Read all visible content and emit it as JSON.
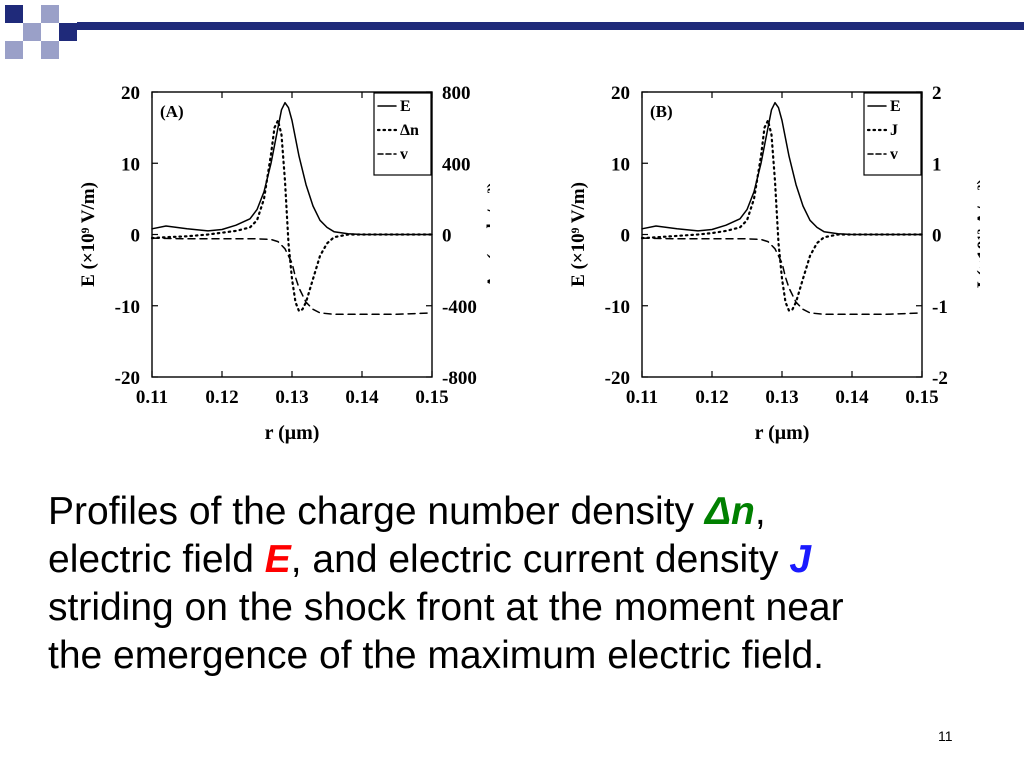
{
  "slide": {
    "caption": {
      "p1": "Profiles of the charge number density ",
      "kw_dn": "Δn",
      "p2": ",",
      "p3": "electric field ",
      "kw_e": "E",
      "p4": ", and electric current density ",
      "kw_j": "J",
      "p5": "striding on the shock front at the moment near",
      "p6": "the emergence of the maximum electric field."
    },
    "page_number": "11",
    "colors": {
      "accent": "#1f2a7a",
      "accent_light": "#9aa0c8",
      "delta_n": "#008000",
      "e_field": "#ff0000",
      "j_current": "#1a1aff"
    }
  },
  "chart_data": [
    {
      "type": "line",
      "panel_label": "(A)",
      "xlabel": "r (μm)",
      "ylabel": "E (×10⁹ V/m)",
      "ylabel_right": "Δn (mole/m³)",
      "xlim": [
        0.11,
        0.15
      ],
      "ylim": [
        -20,
        20
      ],
      "ylim_right": [
        -800,
        800
      ],
      "x_ticks": [
        "0.11",
        "0.12",
        "0.13",
        "0.14",
        "0.15"
      ],
      "y_ticks": [
        "20",
        "10",
        "0",
        "-10",
        "-20"
      ],
      "y_ticks_right": [
        "800",
        "400",
        "0",
        "-400",
        "-800"
      ],
      "legend_position": "top-right",
      "series": [
        {
          "name": "E",
          "style": "solid",
          "axis": "left",
          "x": [
            0.11,
            0.112,
            0.115,
            0.118,
            0.12,
            0.122,
            0.124,
            0.125,
            0.126,
            0.127,
            0.128,
            0.1285,
            0.129,
            0.1295,
            0.13,
            0.1305,
            0.131,
            0.132,
            0.133,
            0.134,
            0.135,
            0.136,
            0.138,
            0.14,
            0.145,
            0.15
          ],
          "y": [
            0.8,
            1.2,
            0.8,
            0.5,
            0.7,
            1.3,
            2.2,
            3.5,
            6,
            10,
            15,
            17.5,
            18.5,
            17.8,
            16,
            13.5,
            11,
            7,
            4,
            2,
            1,
            0.4,
            0.1,
            0,
            0,
            0
          ]
        },
        {
          "name": "Δn",
          "style": "dotted",
          "axis": "right",
          "x": [
            0.11,
            0.112,
            0.115,
            0.118,
            0.12,
            0.122,
            0.124,
            0.125,
            0.126,
            0.127,
            0.1275,
            0.128,
            0.1285,
            0.129,
            0.1295,
            0.13,
            0.1305,
            0.131,
            0.1315,
            0.132,
            0.133,
            0.134,
            0.135,
            0.136,
            0.138,
            0.14,
            0.145,
            0.15
          ],
          "y": [
            -20,
            -15,
            -10,
            0,
            10,
            20,
            40,
            80,
            200,
            450,
            600,
            640,
            560,
            300,
            -50,
            -250,
            -380,
            -430,
            -420,
            -380,
            -250,
            -120,
            -50,
            -15,
            0,
            0,
            0,
            0
          ]
        },
        {
          "name": "v",
          "style": "dashed",
          "axis": "left",
          "x": [
            0.11,
            0.115,
            0.12,
            0.125,
            0.127,
            0.128,
            0.129,
            0.13,
            0.1305,
            0.131,
            0.1315,
            0.132,
            0.133,
            0.134,
            0.136,
            0.14,
            0.145,
            0.15
          ],
          "y": [
            -0.5,
            -0.6,
            -0.6,
            -0.6,
            -0.7,
            -1,
            -2,
            -4,
            -6,
            -7.5,
            -8.5,
            -9.5,
            -10.5,
            -11,
            -11.2,
            -11.2,
            -11.2,
            -11
          ]
        }
      ]
    },
    {
      "type": "line",
      "panel_label": "(B)",
      "xlabel": "r (μm)",
      "ylabel": "E (×10⁹ V/m)",
      "ylabel_right": "J (×10¹² A/m³)",
      "xlim": [
        0.11,
        0.15
      ],
      "ylim": [
        -20,
        20
      ],
      "ylim_right": [
        -2,
        2
      ],
      "x_ticks": [
        "0.11",
        "0.12",
        "0.13",
        "0.14",
        "0.15"
      ],
      "y_ticks": [
        "20",
        "10",
        "0",
        "-10",
        "-20"
      ],
      "y_ticks_right": [
        "2",
        "1",
        "0",
        "-1",
        "-2"
      ],
      "legend_position": "top-right",
      "series": [
        {
          "name": "E",
          "style": "solid",
          "axis": "left",
          "x": [
            0.11,
            0.112,
            0.115,
            0.118,
            0.12,
            0.122,
            0.124,
            0.125,
            0.126,
            0.127,
            0.128,
            0.1285,
            0.129,
            0.1295,
            0.13,
            0.1305,
            0.131,
            0.132,
            0.133,
            0.134,
            0.135,
            0.136,
            0.138,
            0.14,
            0.145,
            0.15
          ],
          "y": [
            0.8,
            1.2,
            0.8,
            0.5,
            0.7,
            1.3,
            2.2,
            3.5,
            6,
            10,
            15,
            17.5,
            18.5,
            17.8,
            16,
            13.5,
            11,
            7,
            4,
            2,
            1,
            0.4,
            0.1,
            0,
            0,
            0
          ]
        },
        {
          "name": "J",
          "style": "dotted",
          "axis": "right",
          "x": [
            0.11,
            0.112,
            0.115,
            0.118,
            0.12,
            0.122,
            0.124,
            0.125,
            0.126,
            0.127,
            0.1275,
            0.128,
            0.1285,
            0.129,
            0.1295,
            0.13,
            0.1305,
            0.131,
            0.1315,
            0.132,
            0.133,
            0.134,
            0.135,
            0.136,
            0.138,
            0.14,
            0.145,
            0.15
          ],
          "y": [
            -0.05,
            -0.04,
            -0.02,
            0,
            0.02,
            0.05,
            0.1,
            0.2,
            0.5,
            1.1,
            1.5,
            1.6,
            1.4,
            0.75,
            -0.12,
            -0.62,
            -0.95,
            -1.07,
            -1.05,
            -0.95,
            -0.62,
            -0.3,
            -0.12,
            -0.04,
            0,
            0,
            0,
            0
          ]
        },
        {
          "name": "v",
          "style": "dashed",
          "axis": "left",
          "x": [
            0.11,
            0.115,
            0.12,
            0.125,
            0.127,
            0.128,
            0.129,
            0.13,
            0.1305,
            0.131,
            0.1315,
            0.132,
            0.133,
            0.134,
            0.136,
            0.14,
            0.145,
            0.15
          ],
          "y": [
            -0.5,
            -0.6,
            -0.6,
            -0.6,
            -0.7,
            -1,
            -2,
            -4,
            -6,
            -7.5,
            -8.5,
            -9.5,
            -10.5,
            -11,
            -11.2,
            -11.2,
            -11.2,
            -11
          ]
        }
      ]
    }
  ]
}
